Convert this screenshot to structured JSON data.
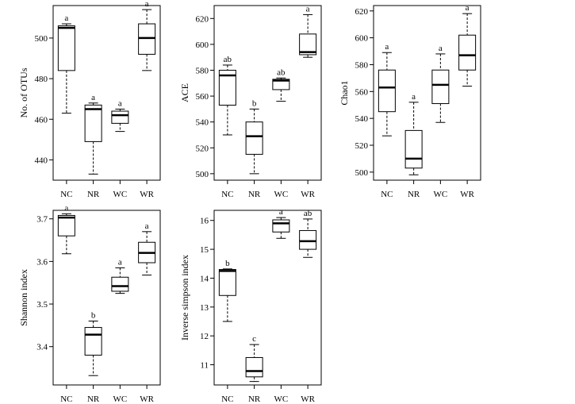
{
  "chart_data": [
    {
      "type": "box",
      "ylabel": "No. of OTUs",
      "categories": [
        "NC",
        "NR",
        "WC",
        "WR"
      ],
      "ylim": [
        430,
        516
      ],
      "yticks": [
        440,
        460,
        480,
        500
      ],
      "boxes": [
        {
          "category": "NC",
          "min": 463,
          "q1": 484,
          "median": 505,
          "q3": 506,
          "max": 507
        },
        {
          "category": "NR",
          "min": 433,
          "q1": 449,
          "median": 465,
          "q3": 467,
          "max": 468
        },
        {
          "category": "WC",
          "min": 454,
          "q1": 458,
          "median": 462,
          "q3": 464,
          "max": 465
        },
        {
          "category": "WR",
          "min": 484,
          "q1": 492,
          "median": 500,
          "q3": 507,
          "max": 514
        }
      ],
      "letters": [
        "a",
        "a",
        "a",
        "a"
      ]
    },
    {
      "type": "box",
      "ylabel": "ACE",
      "categories": [
        "NC",
        "NR",
        "WC",
        "WR"
      ],
      "ylim": [
        495,
        630
      ],
      "yticks": [
        500,
        520,
        540,
        560,
        580,
        600,
        620
      ],
      "boxes": [
        {
          "category": "NC",
          "min": 530,
          "q1": 553,
          "median": 576,
          "q3": 580,
          "max": 584
        },
        {
          "category": "NR",
          "min": 500,
          "q1": 515,
          "median": 529,
          "q3": 540,
          "max": 550
        },
        {
          "category": "WC",
          "min": 556,
          "q1": 565,
          "median": 572,
          "q3": 573,
          "max": 574
        },
        {
          "category": "WR",
          "min": 590,
          "q1": 592,
          "median": 594,
          "q3": 608,
          "max": 623
        }
      ],
      "letters": [
        "ab",
        "b",
        "ab",
        "a"
      ]
    },
    {
      "type": "box",
      "ylabel": "Chao1",
      "categories": [
        "NC",
        "NR",
        "WC",
        "WR"
      ],
      "ylim": [
        494,
        624
      ],
      "yticks": [
        500,
        520,
        540,
        560,
        580,
        600,
        620
      ],
      "boxes": [
        {
          "category": "NC",
          "min": 527,
          "q1": 545,
          "median": 563,
          "q3": 576,
          "max": 589
        },
        {
          "category": "NR",
          "min": 498,
          "q1": 503,
          "median": 510,
          "q3": 531,
          "max": 552
        },
        {
          "category": "WC",
          "min": 537,
          "q1": 551,
          "median": 565,
          "q3": 576,
          "max": 588
        },
        {
          "category": "WR",
          "min": 564,
          "q1": 576,
          "median": 587,
          "q3": 602,
          "max": 618
        }
      ],
      "letters": [
        "a",
        "a",
        "a",
        "a"
      ]
    },
    {
      "type": "box",
      "ylabel": "Shannon index",
      "categories": [
        "NC",
        "NR",
        "WC",
        "WR"
      ],
      "ylim": [
        3.31,
        3.72
      ],
      "yticks": [
        3.4,
        3.5,
        3.6,
        3.7
      ],
      "boxes": [
        {
          "category": "NC",
          "min": 3.618,
          "q1": 3.66,
          "median": 3.703,
          "q3": 3.708,
          "max": 3.712
        },
        {
          "category": "NR",
          "min": 3.332,
          "q1": 3.38,
          "median": 3.428,
          "q3": 3.445,
          "max": 3.46
        },
        {
          "category": "WC",
          "min": 3.525,
          "q1": 3.53,
          "median": 3.542,
          "q3": 3.563,
          "max": 3.585
        },
        {
          "category": "WR",
          "min": 3.568,
          "q1": 3.597,
          "median": 3.62,
          "q3": 3.645,
          "max": 3.67
        }
      ],
      "letters": [
        "a",
        "b",
        "a",
        "a"
      ]
    },
    {
      "type": "box",
      "ylabel": "Inverse simpson index",
      "categories": [
        "NC",
        "NR",
        "WC",
        "WR"
      ],
      "ylim": [
        10.3,
        16.35
      ],
      "yticks": [
        11,
        12,
        13,
        14,
        15,
        16
      ],
      "boxes": [
        {
          "category": "NC",
          "min": 12.5,
          "q1": 13.4,
          "median": 14.25,
          "q3": 14.3,
          "max": 14.32
        },
        {
          "category": "NR",
          "min": 10.42,
          "q1": 10.58,
          "median": 10.78,
          "q3": 11.25,
          "max": 11.7
        },
        {
          "category": "WC",
          "min": 15.38,
          "q1": 15.6,
          "median": 15.9,
          "q3": 16.02,
          "max": 16.1
        },
        {
          "category": "WR",
          "min": 14.72,
          "q1": 15.0,
          "median": 15.28,
          "q3": 15.65,
          "max": 16.05
        }
      ],
      "letters": [
        "b",
        "c",
        "a",
        "ab"
      ]
    }
  ]
}
